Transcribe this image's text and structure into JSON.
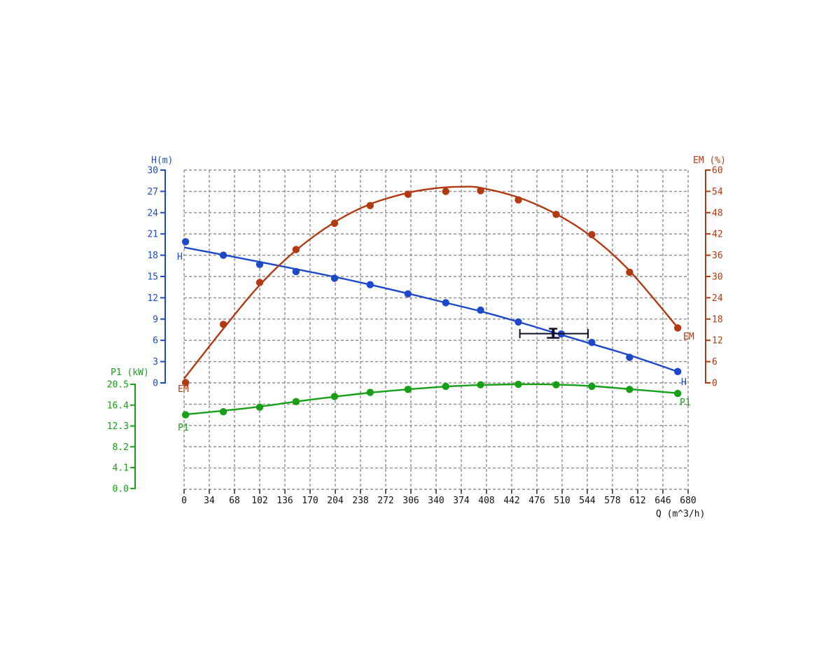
{
  "labels": {
    "h_left": "H",
    "h_right": "H",
    "em_left": "EM",
    "em_right": "EM",
    "p1_left": "P1",
    "p1_right": "P1"
  },
  "colors": {
    "h": "#1c49cc",
    "em": "#b13a12",
    "p1": "#17a017",
    "grid": "#8f8f8f",
    "x_tick": "#222222",
    "x_text": "#111111",
    "marker": "#10102c"
  },
  "chart_data": {
    "type": "line",
    "title": "",
    "xlabel": "Q (m^3/h)",
    "x_range": [
      0,
      680
    ],
    "x_ticks": [
      0,
      34,
      68,
      102,
      136,
      170,
      204,
      238,
      272,
      306,
      340,
      374,
      408,
      442,
      476,
      510,
      544,
      578,
      612,
      646,
      680
    ],
    "grid": "dashed",
    "legend_position": "curve-end-labels",
    "axes": {
      "h": {
        "title": "H(m)",
        "range": [
          0,
          30
        ],
        "ticks": [
          30,
          27,
          24,
          21,
          18,
          15,
          12,
          9,
          6,
          3,
          0
        ],
        "side": "left"
      },
      "em": {
        "title": "EM (%)",
        "range": [
          0,
          60
        ],
        "ticks": [
          60,
          54,
          48,
          42,
          36,
          30,
          24,
          18,
          12,
          6,
          0
        ],
        "side": "right"
      },
      "p1": {
        "title": "P1 (kW)",
        "range": [
          0,
          20.5
        ],
        "ticks": [
          "20.5",
          "16.4",
          "12.3",
          "8.2",
          "4.1",
          "0.0"
        ],
        "side": "left-lower"
      }
    },
    "series": [
      {
        "name": "H",
        "axis": "h",
        "points": [
          [
            2,
            19.9
          ],
          [
            53,
            18.0
          ],
          [
            102,
            16.7
          ],
          [
            151,
            15.7
          ],
          [
            203,
            14.75
          ],
          [
            251,
            13.85
          ],
          [
            302,
            12.55
          ],
          [
            353,
            11.3
          ],
          [
            400,
            10.25
          ],
          [
            451,
            8.6
          ],
          [
            509,
            6.9
          ],
          [
            550,
            5.7
          ],
          [
            601,
            3.6
          ],
          [
            666,
            1.6
          ]
        ],
        "fit_curve": [
          [
            0,
            19.1
          ],
          [
            53,
            18.05
          ],
          [
            102,
            17.05
          ],
          [
            151,
            16.05
          ],
          [
            203,
            14.95
          ],
          [
            251,
            13.85
          ],
          [
            302,
            12.6
          ],
          [
            353,
            11.3
          ],
          [
            400,
            10.1
          ],
          [
            451,
            8.6
          ],
          [
            502,
            7.0
          ],
          [
            550,
            5.5
          ],
          [
            601,
            3.9
          ],
          [
            666,
            1.6
          ]
        ]
      },
      {
        "name": "EM",
        "axis": "em",
        "points": [
          [
            2,
            0.1
          ],
          [
            53,
            16.5
          ],
          [
            102,
            28.3
          ],
          [
            151,
            37.6
          ],
          [
            203,
            45.0
          ],
          [
            251,
            50.0
          ],
          [
            302,
            53.2
          ],
          [
            353,
            54.0
          ],
          [
            400,
            54.2
          ],
          [
            451,
            51.6
          ],
          [
            502,
            47.5
          ],
          [
            550,
            41.8
          ],
          [
            601,
            31.2
          ],
          [
            666,
            15.5
          ]
        ],
        "fit_curve": [
          [
            0,
            1.2
          ],
          [
            53,
            15.3
          ],
          [
            102,
            27.6
          ],
          [
            151,
            37.4
          ],
          [
            203,
            45.3
          ],
          [
            251,
            50.4
          ],
          [
            302,
            53.6
          ],
          [
            340,
            54.9
          ],
          [
            374,
            55.3
          ],
          [
            400,
            55.0
          ],
          [
            451,
            52.3
          ],
          [
            502,
            47.6
          ],
          [
            550,
            41.2
          ],
          [
            601,
            31.6
          ],
          [
            666,
            15.6
          ]
        ]
      },
      {
        "name": "P1",
        "axis": "p1",
        "points": [
          [
            2,
            14.5
          ],
          [
            53,
            15.1
          ],
          [
            102,
            16.0
          ],
          [
            151,
            17.1
          ],
          [
            203,
            18.1
          ],
          [
            251,
            18.9
          ],
          [
            302,
            19.5
          ],
          [
            353,
            20.1
          ],
          [
            400,
            20.4
          ],
          [
            451,
            20.5
          ],
          [
            502,
            20.4
          ],
          [
            550,
            20.1
          ],
          [
            601,
            19.5
          ],
          [
            666,
            18.7
          ]
        ],
        "fit_curve": [
          [
            0,
            14.55
          ],
          [
            53,
            15.3
          ],
          [
            102,
            16.1
          ],
          [
            151,
            17.1
          ],
          [
            203,
            18.05
          ],
          [
            251,
            18.85
          ],
          [
            302,
            19.5
          ],
          [
            353,
            20.05
          ],
          [
            400,
            20.35
          ],
          [
            451,
            20.5
          ],
          [
            502,
            20.45
          ],
          [
            550,
            20.15
          ],
          [
            601,
            19.55
          ],
          [
            666,
            18.75
          ]
        ]
      }
    ],
    "duty_point": {
      "q": 498,
      "h": 6.95,
      "q_low": 453,
      "q_high": 545
    }
  }
}
